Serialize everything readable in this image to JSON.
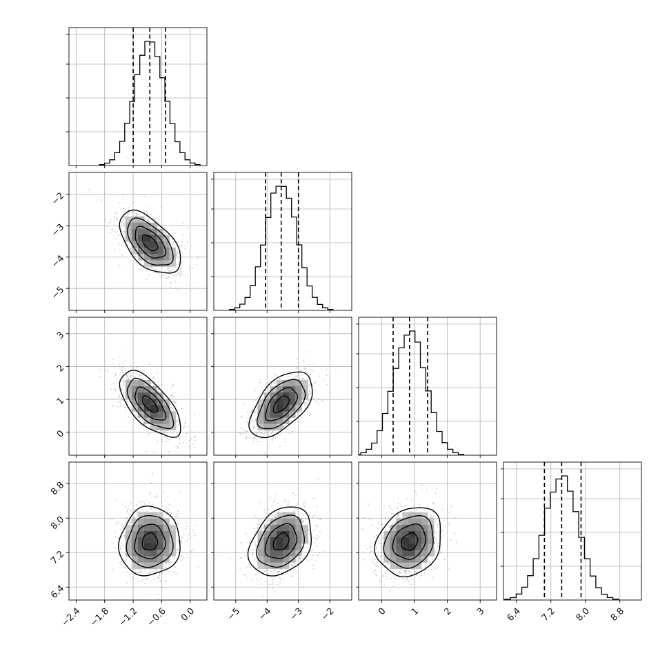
{
  "chart_data": {
    "type": "corner",
    "params": [
      {
        "mean": -0.85,
        "sd": 0.32,
        "ylim": [
          -2.55,
          0.35
        ],
        "quantiles": [
          -1.2,
          -0.85,
          -0.52
        ],
        "ticks": [
          -2.4,
          -1.8,
          -1.2,
          -0.6,
          0.0
        ],
        "tick_labels": [
          "−2.4",
          "−1.8",
          "−1.2",
          "−0.6",
          "0.0"
        ]
      },
      {
        "mean": -3.55,
        "sd": 0.5,
        "ylim": [
          -5.7,
          -1.3
        ],
        "quantiles": [
          -4.05,
          -3.55,
          -3.0
        ],
        "ticks": [
          -5,
          -4,
          -3,
          -2
        ],
        "tick_labels": [
          "−5",
          "−4",
          "−3",
          "−2"
        ]
      },
      {
        "mean": 0.85,
        "sd": 0.5,
        "ylim": [
          -0.7,
          3.5
        ],
        "quantiles": [
          0.35,
          0.85,
          1.4
        ],
        "ticks": [
          0,
          1,
          2,
          3
        ],
        "tick_labels": [
          "0",
          "1",
          "2",
          "3"
        ]
      },
      {
        "mean": 7.45,
        "sd": 0.4,
        "ylim": [
          6.1,
          9.3
        ],
        "quantiles": [
          7.05,
          7.45,
          7.9
        ],
        "ticks": [
          6.4,
          7.2,
          8.0,
          8.8
        ],
        "tick_labels": [
          "6.4",
          "7.2",
          "8.0",
          "8.8"
        ]
      }
    ],
    "correlations": [
      [
        1,
        -0.55,
        -0.65,
        0.05
      ],
      [
        -0.55,
        1,
        0.55,
        0.3
      ],
      [
        -0.65,
        0.55,
        1,
        0.2
      ],
      [
        0.05,
        0.3,
        0.2,
        1
      ]
    ],
    "histogram_bins": 20,
    "contour_levels": 4,
    "grid": true,
    "colors": {
      "line": "#000000",
      "points": "#9a9a9a",
      "grid": "#b0b0b0",
      "axes": "#000000"
    }
  }
}
